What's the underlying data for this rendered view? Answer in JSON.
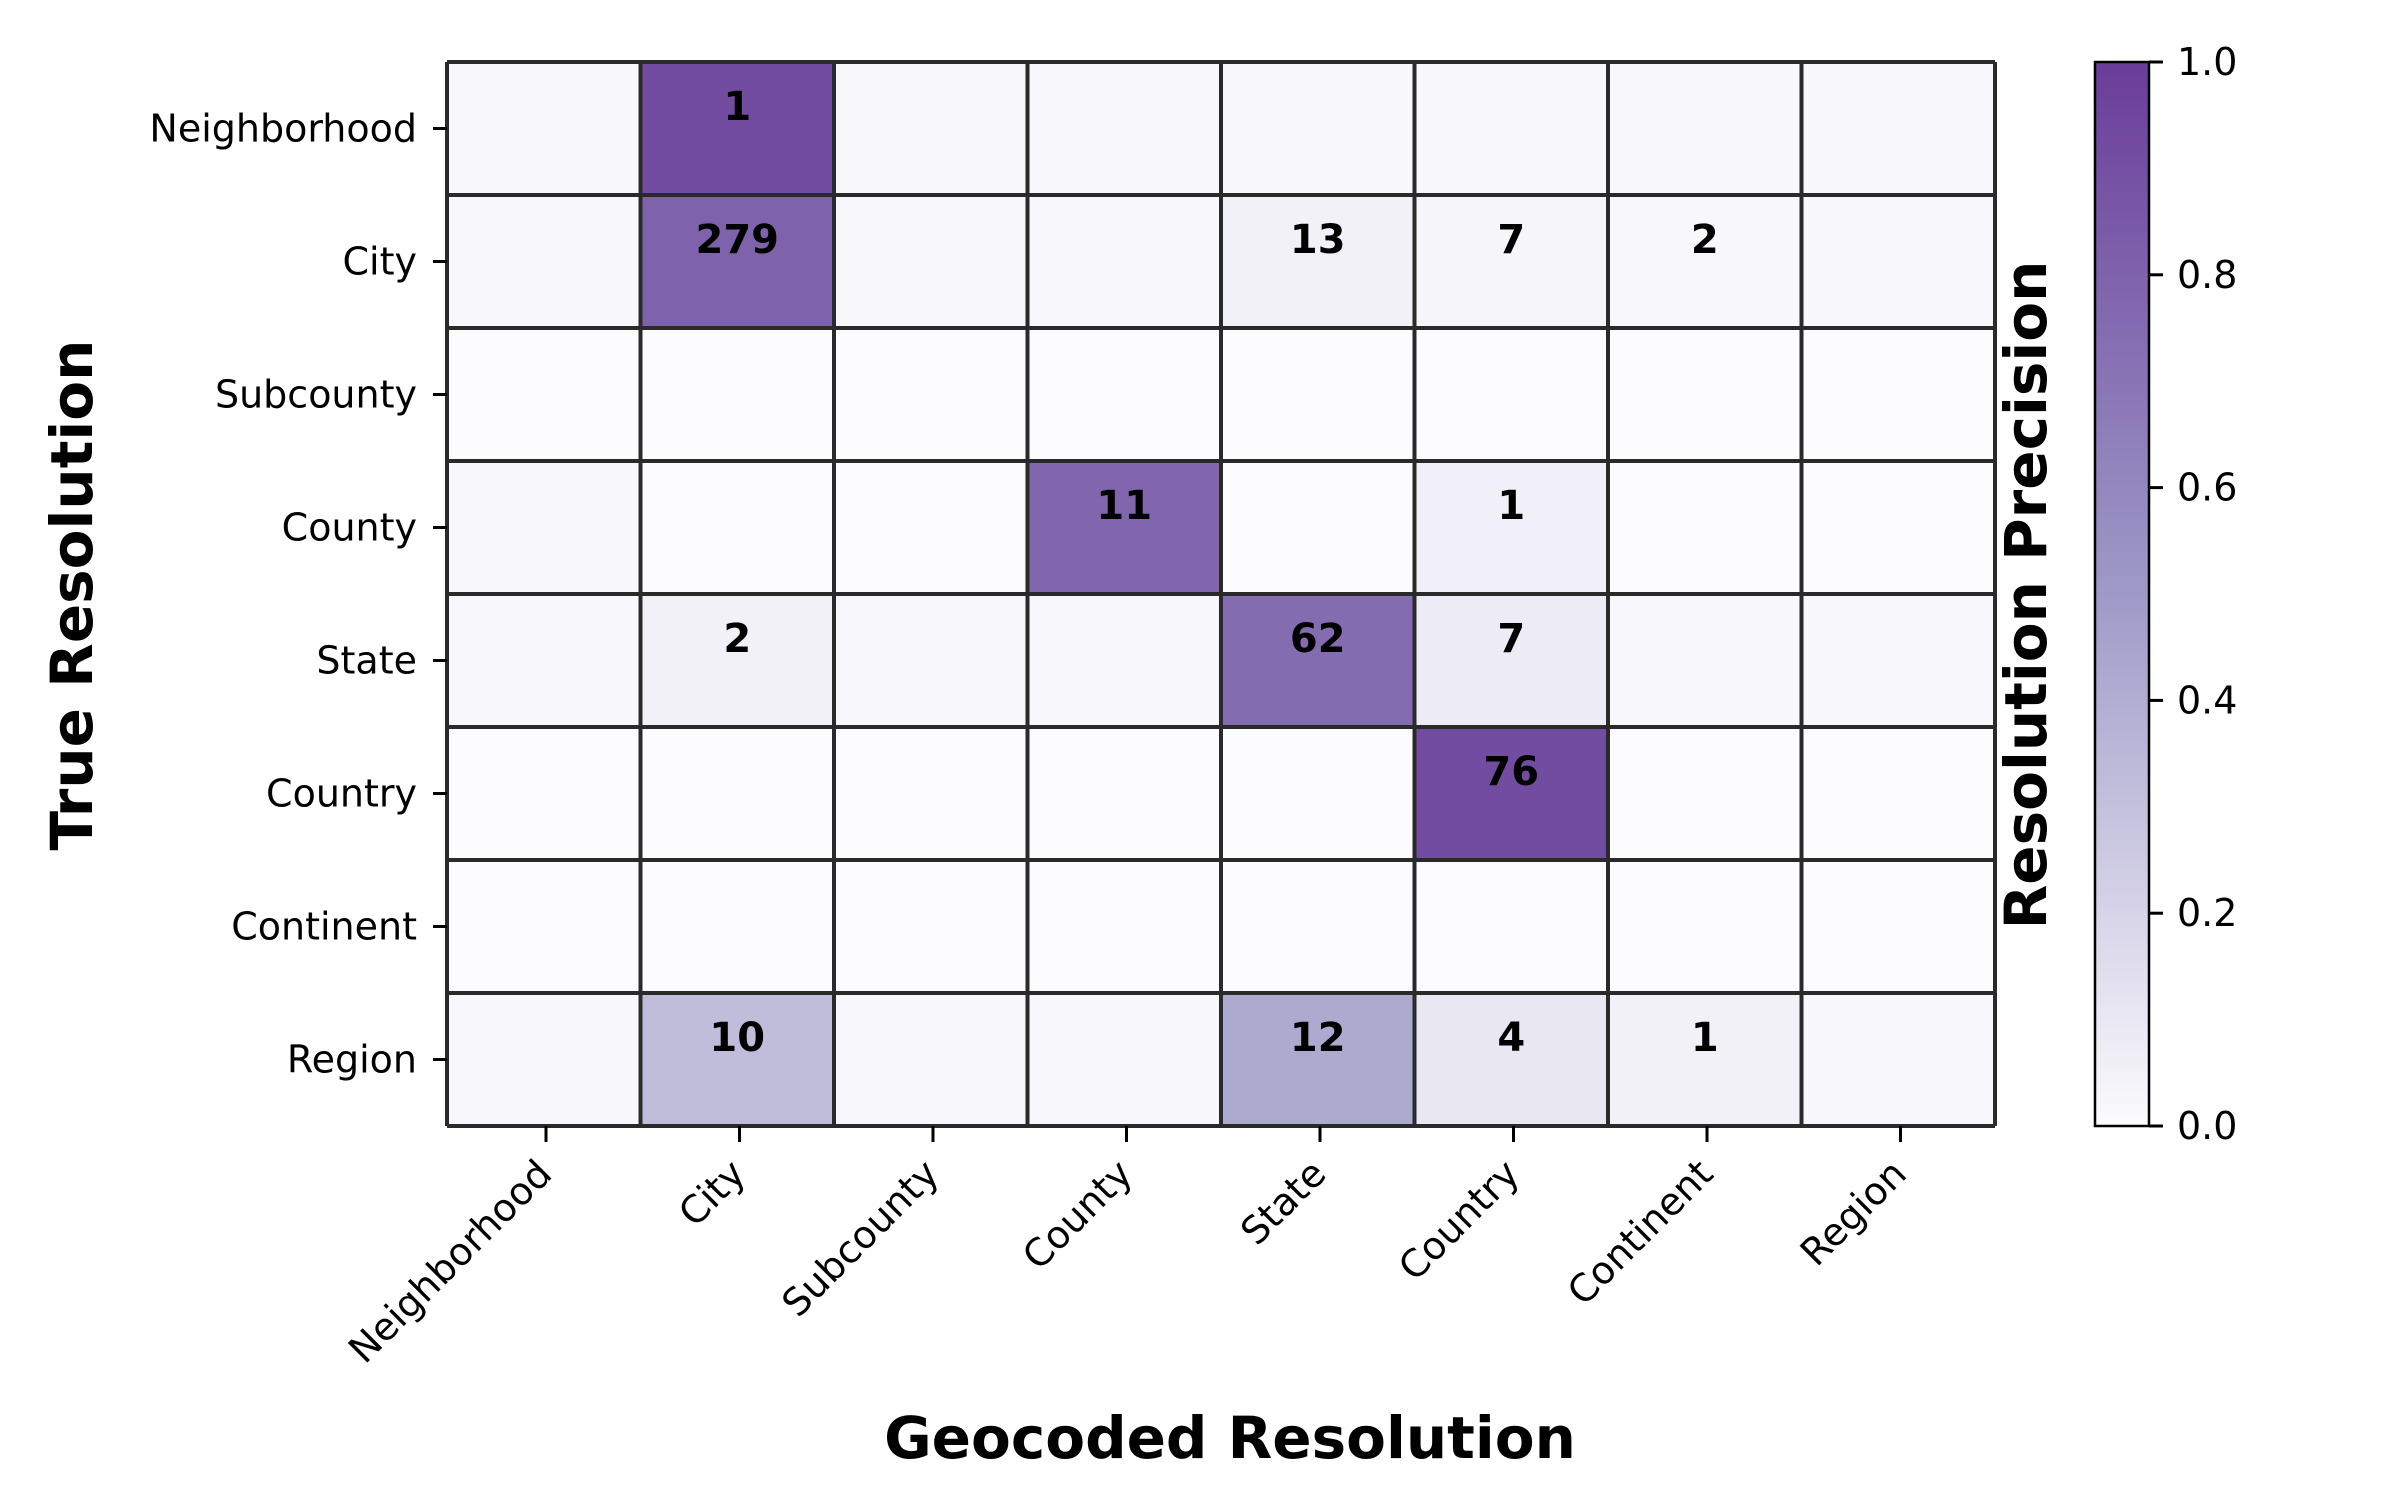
{
  "chart_data": {
    "type": "heatmap",
    "xlabel": "Geocoded Resolution",
    "ylabel": "True Resolution",
    "x_categories": [
      "Neighborhood",
      "City",
      "Subcounty",
      "County",
      "State",
      "Country",
      "Continent",
      "Region"
    ],
    "y_categories": [
      "Neighborhood",
      "City",
      "Subcounty",
      "County",
      "State",
      "Country",
      "Continent",
      "Region"
    ],
    "counts": [
      [
        null,
        1,
        null,
        null,
        null,
        null,
        null,
        null
      ],
      [
        null,
        279,
        null,
        null,
        13,
        7,
        2,
        null
      ],
      [
        null,
        null,
        null,
        null,
        null,
        null,
        null,
        null
      ],
      [
        null,
        null,
        null,
        11,
        null,
        1,
        null,
        null
      ],
      [
        null,
        2,
        null,
        null,
        62,
        7,
        null,
        null
      ],
      [
        null,
        null,
        null,
        null,
        null,
        76,
        null,
        null
      ],
      [
        null,
        null,
        null,
        null,
        null,
        null,
        null,
        null
      ],
      [
        null,
        10,
        null,
        null,
        12,
        4,
        1,
        null
      ]
    ],
    "intensity": [
      [
        0.02,
        0.92,
        0.02,
        0.02,
        0.02,
        0.02,
        0.02,
        0.02
      ],
      [
        0.02,
        0.8,
        0.02,
        0.02,
        0.05,
        0.03,
        0.02,
        0.02
      ],
      [
        0.0,
        0.0,
        0.0,
        0.0,
        0.0,
        0.0,
        0.0,
        0.0
      ],
      [
        0.02,
        0.0,
        0.0,
        0.78,
        0.0,
        0.06,
        0.0,
        0.0
      ],
      [
        0.02,
        0.05,
        0.02,
        0.02,
        0.75,
        0.08,
        0.02,
        0.02
      ],
      [
        0.0,
        0.0,
        0.0,
        0.0,
        0.0,
        0.92,
        0.0,
        0.0
      ],
      [
        0.0,
        0.0,
        0.0,
        0.0,
        0.0,
        0.0,
        0.0,
        0.0
      ],
      [
        0.02,
        0.32,
        0.02,
        0.02,
        0.42,
        0.1,
        0.05,
        0.02
      ]
    ],
    "colorbar": {
      "label": "Resolution Precision",
      "range": [
        0.0,
        1.0
      ],
      "ticks": [
        "0.0",
        "0.2",
        "0.4",
        "0.6",
        "0.8",
        "1.0"
      ],
      "colors": [
        "#fcfbfd",
        "#9e9ac8",
        "#6a3d9a"
      ]
    }
  }
}
